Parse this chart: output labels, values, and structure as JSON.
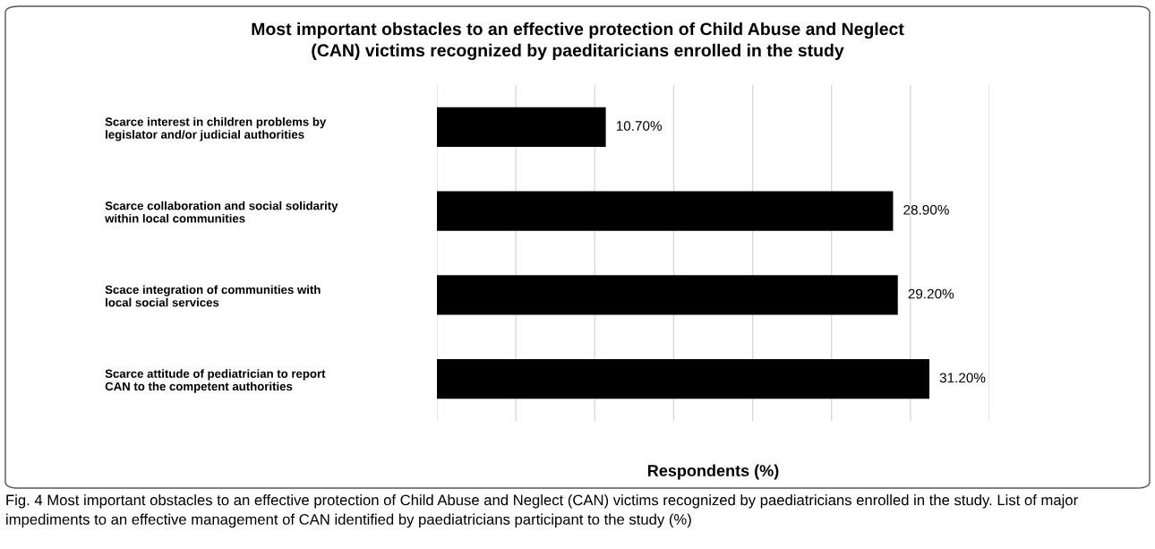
{
  "chart_data": {
    "type": "bar",
    "orientation": "horizontal",
    "title": "Most important obstacles to an effective protection of Child Abuse and Neglect\n(CAN) victims recognized by paeditaricians enrolled in the study",
    "xlabel": "Respondents (%)",
    "categories": [
      "Scarce interest in children problems by\nlegislator and/or judicial authorities",
      "Scarce collaboration and social solidarity\nwithin local communities",
      "Scace integration of communities with\nlocal social services",
      "Scarce attitude of pediatrician to report\nCAN to the competent authorities"
    ],
    "values": [
      10.7,
      28.9,
      29.2,
      31.2
    ],
    "value_labels": [
      "10.70%",
      "28.90%",
      "29.20%",
      "31.20%"
    ],
    "color": "#000000",
    "xlim": [
      0,
      35
    ],
    "xticks": [
      {
        "value": 0,
        "label": null
      },
      {
        "value": 5,
        "label": null
      },
      {
        "value": 10,
        "label": null
      },
      {
        "value": 15,
        "label": null
      },
      {
        "value": 20,
        "label": null
      },
      {
        "value": 25,
        "label": null
      },
      {
        "value": 30,
        "label": null
      },
      {
        "value": 35,
        "label": null
      }
    ],
    "grid": "x",
    "tick_labels": "y",
    "legend": false,
    "annotations": [
      "Fig. 4 Most important obstacles to an effective protection of Child Abuse and Neglect (CAN) victims recognized by paediatricians enrolled in the study. List of major impediments to an effective management of CAN identified by paediatricians participant to the study (%)"
    ]
  }
}
